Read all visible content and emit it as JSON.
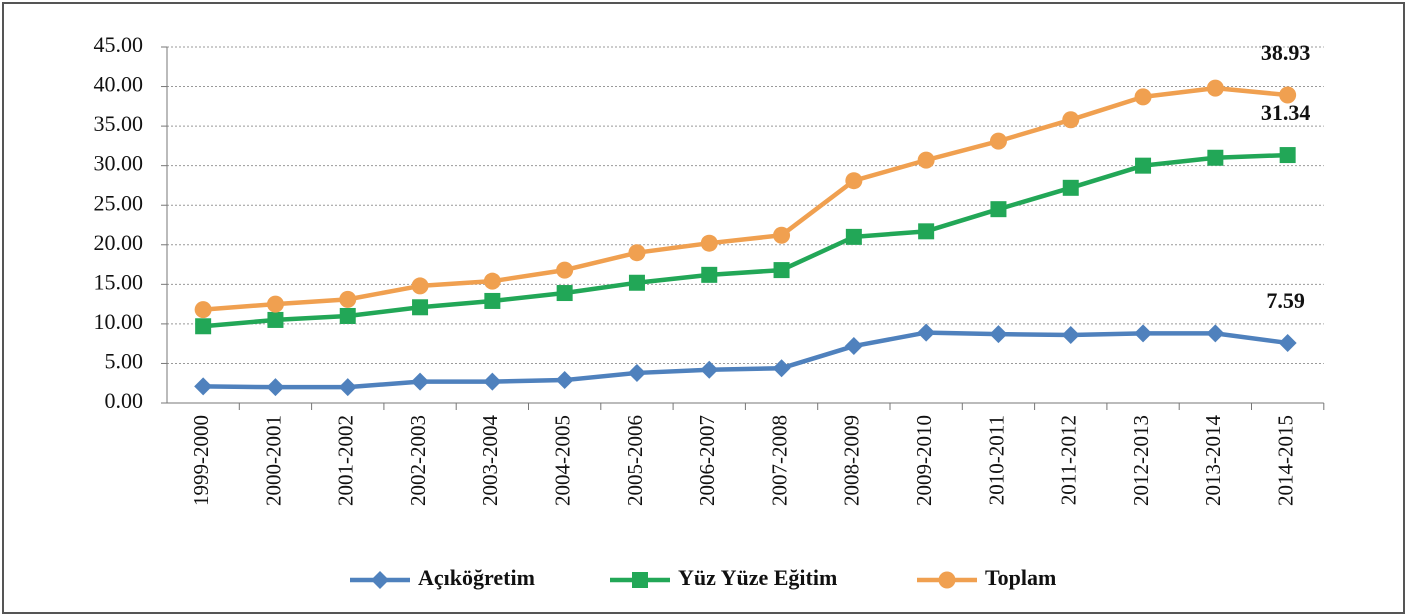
{
  "chart_data": {
    "type": "line",
    "categories": [
      "1999-2000",
      "2000-2001",
      "2001-2002",
      "2002-2003",
      "2003-2004",
      "2004-2005",
      "2005-2006",
      "2006-2007",
      "2007-2008",
      "2008-2009",
      "2009-2010",
      "2010-2011",
      "2011-2012",
      "2012-2013",
      "2013-2014",
      "2014-2015"
    ],
    "series": [
      {
        "name": "Açıköğretim",
        "color": "#4f81bd",
        "marker": "diamond",
        "values": [
          2.1,
          2.0,
          2.0,
          2.7,
          2.7,
          2.9,
          3.8,
          4.2,
          4.4,
          7.2,
          8.9,
          8.7,
          8.6,
          8.8,
          8.8,
          7.59
        ],
        "value_labels": [
          null,
          null,
          null,
          null,
          null,
          null,
          null,
          null,
          null,
          null,
          null,
          null,
          null,
          null,
          null,
          "7.59"
        ]
      },
      {
        "name": "Yüz Yüze Eğitim",
        "color": "#22a757",
        "marker": "square",
        "values": [
          9.7,
          10.5,
          11.0,
          12.1,
          12.9,
          13.9,
          15.2,
          16.2,
          16.8,
          21.0,
          21.7,
          24.5,
          27.2,
          30.0,
          31.0,
          31.34
        ],
        "value_labels": [
          null,
          null,
          null,
          null,
          null,
          null,
          null,
          null,
          null,
          null,
          null,
          null,
          null,
          null,
          null,
          "31.34"
        ]
      },
      {
        "name": "Toplam",
        "color": "#f0a050",
        "marker": "circle",
        "values": [
          11.8,
          12.5,
          13.1,
          14.8,
          15.4,
          16.8,
          19.0,
          20.2,
          21.2,
          28.1,
          30.7,
          33.1,
          35.8,
          38.7,
          39.8,
          38.93
        ],
        "value_labels": [
          null,
          null,
          null,
          null,
          null,
          null,
          null,
          null,
          null,
          null,
          null,
          null,
          null,
          null,
          null,
          "38.93"
        ]
      }
    ],
    "ylim": [
      0,
      45
    ],
    "yticks": [
      {
        "value": 0,
        "label": "0.00"
      },
      {
        "value": 5,
        "label": "5.00"
      },
      {
        "value": 10,
        "label": "10.00"
      },
      {
        "value": 15,
        "label": "15.00"
      },
      {
        "value": 20,
        "label": "20.00"
      },
      {
        "value": 25,
        "label": "25.00"
      },
      {
        "value": 30,
        "label": "30.00"
      },
      {
        "value": 35,
        "label": "35.00"
      },
      {
        "value": 40,
        "label": "40.00"
      },
      {
        "value": 45,
        "label": "45.00"
      }
    ],
    "grid": true,
    "legend": "bottom"
  }
}
